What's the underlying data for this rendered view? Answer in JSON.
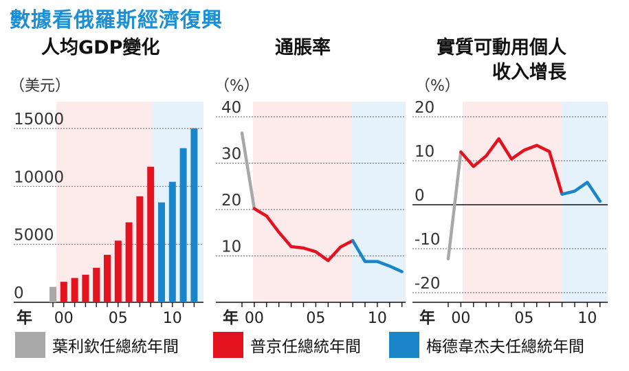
{
  "title": "數據看俄羅斯經濟復興",
  "colors": {
    "yeltsin": "#a8a8a8",
    "putin": "#e3121f",
    "medvedev": "#1a86c9",
    "title": "#1a8fd6"
  },
  "legend": [
    {
      "label": "葉利欽任總統年間",
      "color_key": "yeltsin"
    },
    {
      "label": "普京任總統年間",
      "color_key": "putin"
    },
    {
      "label": "梅德韋杰夫任總統年間",
      "color_key": "medvedev"
    }
  ],
  "chart_data": [
    {
      "type": "bar",
      "title": "人均GDP變化",
      "unit": "（美元）",
      "year_label": "年",
      "x_ticks": [
        "00",
        "05",
        "10"
      ],
      "x_tick_years": [
        2000,
        2005,
        2010
      ],
      "y_ticks": [
        "0",
        "5000",
        "10000",
        "15000"
      ],
      "ylim": [
        0,
        15000
      ],
      "x": [
        1999,
        2000,
        2001,
        2002,
        2003,
        2004,
        2005,
        2006,
        2007,
        2008,
        2009,
        2010,
        2011,
        2012
      ],
      "values": [
        1330,
        1770,
        2100,
        2380,
        2980,
        4100,
        5320,
        6900,
        9150,
        11700,
        8620,
        10400,
        13300,
        15000
      ],
      "periods": [
        "yeltsin",
        "putin",
        "putin",
        "putin",
        "putin",
        "putin",
        "putin",
        "putin",
        "putin",
        "putin",
        "medvedev",
        "medvedev",
        "medvedev",
        "medvedev"
      ]
    },
    {
      "type": "line",
      "title": "通脹率",
      "unit": "（%）",
      "year_label": "年",
      "x_ticks": [
        "00",
        "05",
        "10"
      ],
      "x_tick_years": [
        2000,
        2005,
        2010
      ],
      "y_ticks": [
        "10",
        "20",
        "30",
        "40"
      ],
      "ylim": [
        0,
        40
      ],
      "series": [
        {
          "period": "yeltsin",
          "x": [
            1999,
            2000
          ],
          "values": [
            36.5,
            20.2
          ]
        },
        {
          "period": "putin",
          "x": [
            2000,
            2001,
            2002,
            2003,
            2004,
            2005,
            2006,
            2007,
            2008
          ],
          "values": [
            20.2,
            18.6,
            15.1,
            12.0,
            11.7,
            10.9,
            9.0,
            11.9,
            13.3
          ]
        },
        {
          "period": "medvedev",
          "x": [
            2008,
            2009,
            2010,
            2011,
            2012
          ],
          "values": [
            13.3,
            8.8,
            8.8,
            7.8,
            6.6
          ]
        }
      ]
    },
    {
      "type": "line",
      "title": "實質可動用個人收入增長",
      "title_lines": [
        "實質可動用個人",
        "收入增長"
      ],
      "unit": "（%）",
      "year_label": "年",
      "x_ticks": [
        "00",
        "05",
        "10"
      ],
      "x_tick_years": [
        2000,
        2005,
        2010
      ],
      "y_ticks": [
        "-20",
        "-10",
        "0",
        "10",
        "20"
      ],
      "ylim": [
        -20,
        20
      ],
      "series": [
        {
          "period": "yeltsin",
          "x": [
            1999,
            2000
          ],
          "values": [
            -12.3,
            12.0
          ]
        },
        {
          "period": "putin",
          "x": [
            2000,
            2001,
            2002,
            2003,
            2004,
            2005,
            2006,
            2007,
            2008
          ],
          "values": [
            12.0,
            8.7,
            11.1,
            15.0,
            10.4,
            12.4,
            13.5,
            12.1,
            2.4
          ]
        },
        {
          "period": "medvedev",
          "x": [
            2008,
            2009,
            2010,
            2011
          ],
          "values": [
            2.4,
            3.1,
            5.1,
            0.8
          ]
        }
      ]
    }
  ]
}
